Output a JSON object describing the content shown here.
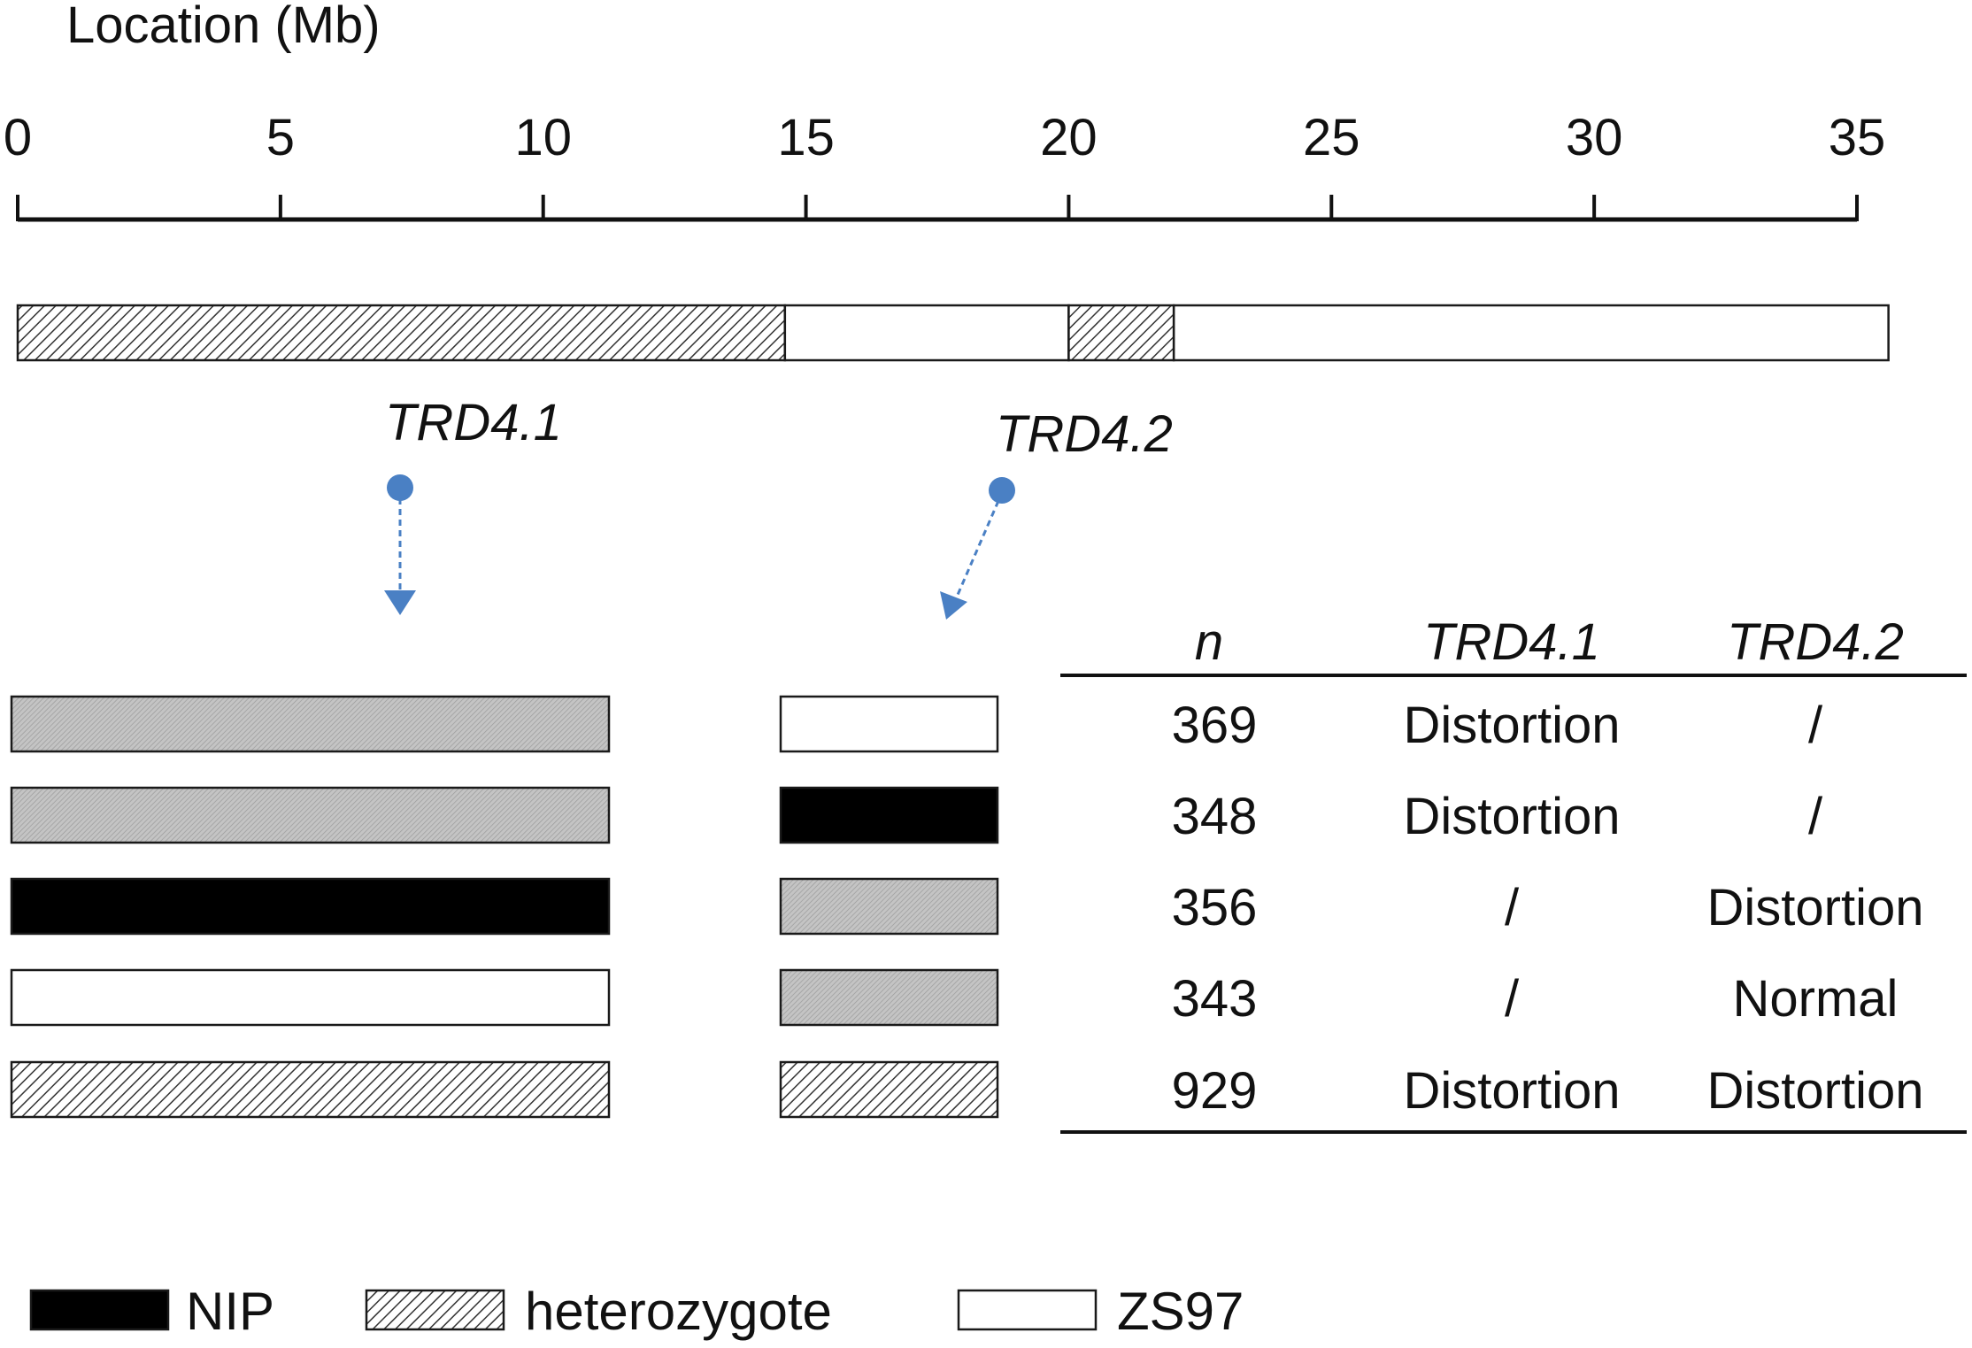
{
  "axis": {
    "title": "Location (Mb)",
    "min": 0,
    "max": 35,
    "ticks": [
      0,
      5,
      10,
      15,
      20,
      25,
      30,
      35
    ]
  },
  "colors": {
    "nip": "#000000",
    "zs97": "#ffffff",
    "stroke": "#1a1a1a",
    "marker": "#4a80c4"
  },
  "chromosome": {
    "segments": [
      {
        "start": 0,
        "end": 14.6,
        "genotype": "heterozygote"
      },
      {
        "start": 14.6,
        "end": 20.0,
        "genotype": "ZS97"
      },
      {
        "start": 20.0,
        "end": 22.0,
        "genotype": "heterozygote"
      },
      {
        "start": 22.0,
        "end": 35.6,
        "genotype": "ZS97"
      }
    ]
  },
  "markers": [
    {
      "id": "trd41",
      "label": "TRD4.1"
    },
    {
      "id": "trd42",
      "label": "TRD4.2"
    }
  ],
  "table": {
    "headers": [
      "n",
      "TRD4.1",
      "TRD4.2"
    ],
    "rows": [
      {
        "left": "heterozygote-gray",
        "right": "ZS97",
        "n": "369",
        "trd41": "Distortion",
        "trd42": "/"
      },
      {
        "left": "heterozygote-gray",
        "right": "NIP",
        "n": "348",
        "trd41": "Distortion",
        "trd42": "/"
      },
      {
        "left": "NIP",
        "right": "heterozygote-gray",
        "n": "356",
        "trd41": "/",
        "trd42": "Distortion"
      },
      {
        "left": "ZS97",
        "right": "heterozygote-gray",
        "n": "343",
        "trd41": "/",
        "trd42": "Normal"
      },
      {
        "left": "heterozygote",
        "right": "heterozygote",
        "n": "929",
        "trd41": "Distortion",
        "trd42": "Distortion"
      }
    ]
  },
  "legend": [
    {
      "key": "NIP",
      "label": "NIP"
    },
    {
      "key": "heterozygote",
      "label": "heterozygote"
    },
    {
      "key": "ZS97",
      "label": "ZS97"
    }
  ]
}
